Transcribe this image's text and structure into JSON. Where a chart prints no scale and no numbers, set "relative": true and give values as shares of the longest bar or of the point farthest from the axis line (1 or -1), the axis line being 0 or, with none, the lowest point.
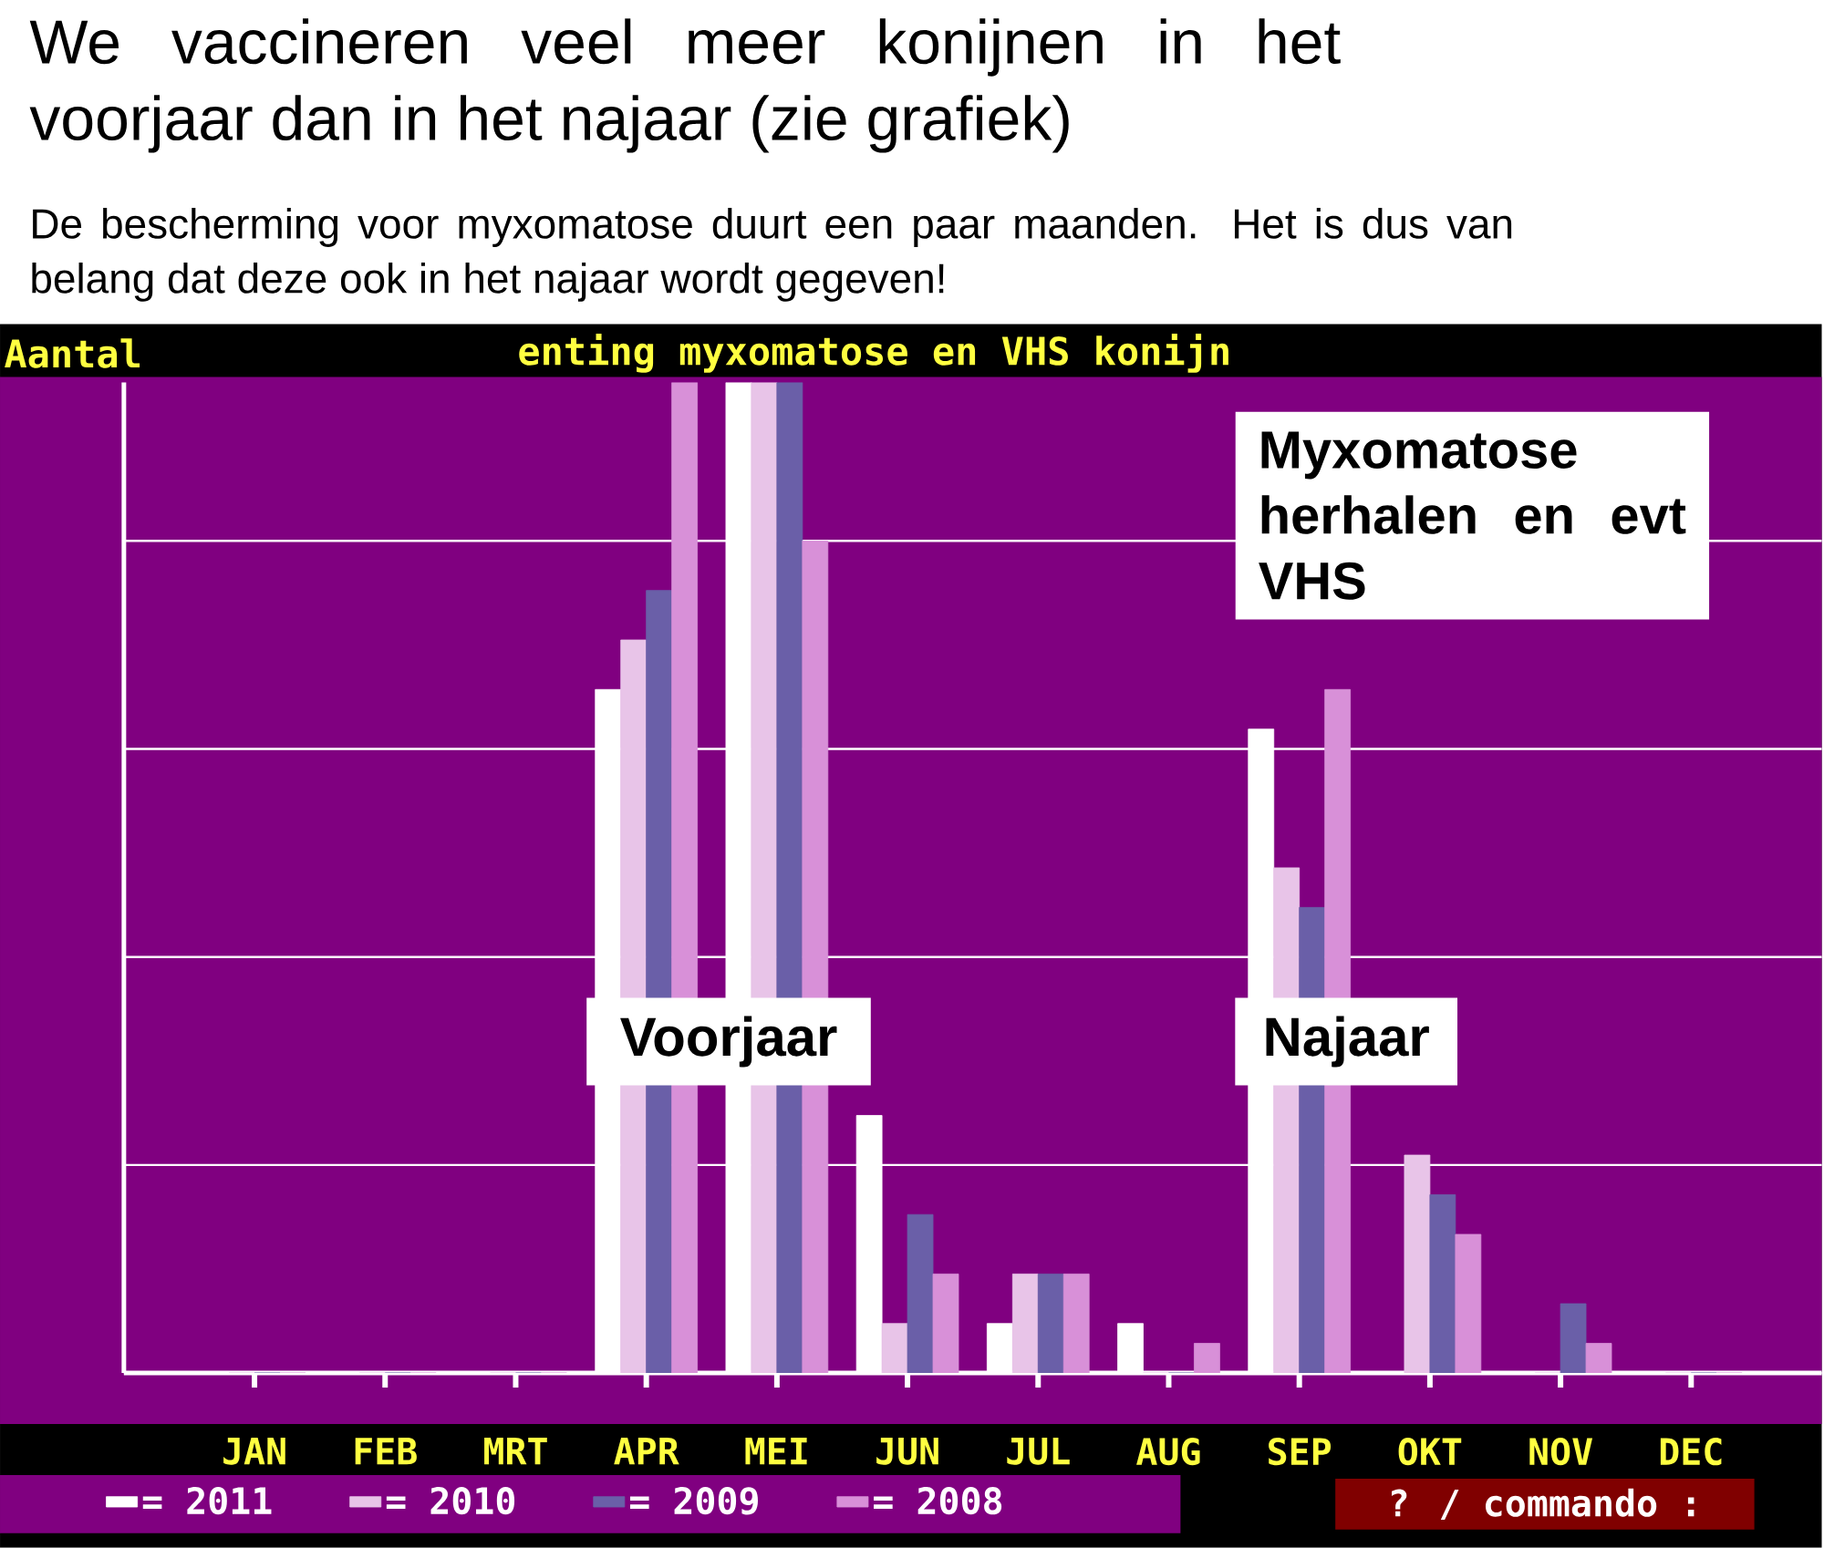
{
  "chart_data": {
    "type": "bar",
    "title": "We vaccineren veel meer konijnen in het voorjaar dan in het najaar (zie grafiek)",
    "subtitle": "De bescherming voor myxomatose duurt een paar maanden. Het is dus van belang dat deze ook in het najaar wordt gegeven!",
    "ylabel": "Aantal",
    "relative": true,
    "grid": "y",
    "legend": "bottom",
    "categories": [
      "JAN",
      "FEB",
      "MRT",
      "APR",
      "MEI",
      "JUN",
      "JUL",
      "AUG",
      "SEP",
      "OKT",
      "NOV",
      "DEC"
    ],
    "series": [
      {
        "name": "= 2011",
        "color": "#ffffff",
        "values": [
          0,
          0,
          0,
          0.69,
          1,
          0.26,
          0.05,
          0.05,
          0.65,
          0,
          0,
          0
        ]
      },
      {
        "name": "= 2010",
        "color": "#e8c4e8",
        "values": [
          0,
          0,
          0,
          0.74,
          1,
          0.05,
          0.1,
          0,
          0.51,
          0.22,
          0,
          0
        ]
      },
      {
        "name": "= 2009",
        "color": "#6a5fa8",
        "values": [
          0,
          0,
          0,
          0.79,
          1,
          0.16,
          0.1,
          0,
          0.47,
          0.18,
          0.07,
          0
        ]
      },
      {
        "name": "= 2008",
        "color": "#d890d8",
        "values": [
          0,
          0,
          0,
          1,
          0.84,
          0.1,
          0.1,
          0.03,
          0.69,
          0.14,
          0.03,
          0
        ]
      }
    ],
    "annotations": [
      "enting myxomatose en VHS konijn",
      "Voorjaar",
      "Najaar",
      "Myxomatose herhalen en evt VHS",
      "? / commando :"
    ]
  }
}
